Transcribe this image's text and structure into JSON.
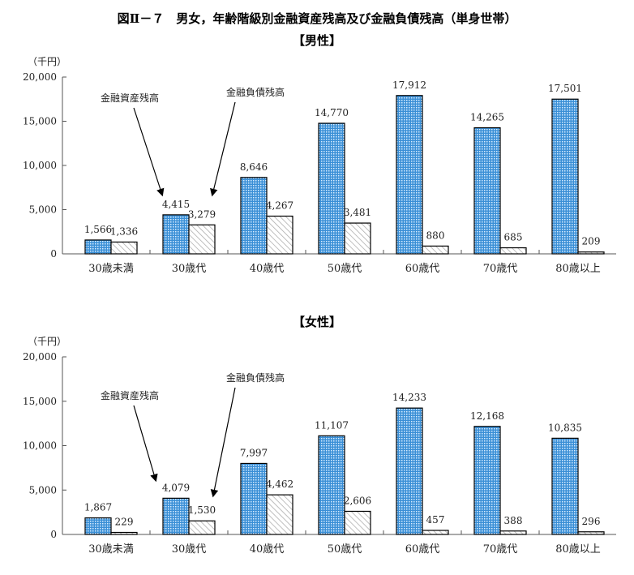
{
  "title": "図Ⅱ－７　男女，年齢階級別金融資産残高及び金融負債残高（単身世帯）",
  "chart_data": [
    {
      "type": "bar",
      "title": "【男性】",
      "ylabel": "（千円）",
      "ylim": [
        0,
        20000
      ],
      "yticks": [
        "0",
        "5,000",
        "10,000",
        "15,000",
        "20,000"
      ],
      "categories": [
        "30歳未満",
        "30歳代",
        "40歳代",
        "50歳代",
        "60歳代",
        "70歳代",
        "80歳以上"
      ],
      "series": [
        {
          "name": "金融資産残高",
          "values": [
            1566,
            4415,
            8646,
            14770,
            17912,
            14265,
            17501
          ],
          "labels": [
            "1,566",
            "4,415",
            "8,646",
            "14,770",
            "17,912",
            "14,265",
            "17,501"
          ]
        },
        {
          "name": "金融負債残高",
          "values": [
            1336,
            3279,
            4267,
            3481,
            880,
            685,
            209
          ],
          "labels": [
            "1,336",
            "3,279",
            "4,267",
            "3,481",
            "880",
            "685",
            "209"
          ]
        }
      ]
    },
    {
      "type": "bar",
      "title": "【女性】",
      "ylabel": "（千円）",
      "ylim": [
        0,
        20000
      ],
      "yticks": [
        "0",
        "5,000",
        "10,000",
        "15,000",
        "20,000"
      ],
      "categories": [
        "30歳未満",
        "30歳代",
        "40歳代",
        "50歳代",
        "60歳代",
        "70歳代",
        "80歳以上"
      ],
      "series": [
        {
          "name": "金融資産残高",
          "values": [
            1867,
            4079,
            7997,
            11107,
            14233,
            12168,
            10835
          ],
          "labels": [
            "1,867",
            "4,079",
            "7,997",
            "11,107",
            "14,233",
            "12,168",
            "10,835"
          ]
        },
        {
          "name": "金融負債残高",
          "values": [
            229,
            1530,
            4462,
            2606,
            457,
            388,
            296
          ],
          "labels": [
            "229",
            "1,530",
            "4,462",
            "2,606",
            "457",
            "388",
            "296"
          ]
        }
      ]
    }
  ],
  "colors": {
    "asset": "#3a8fd6",
    "debt": "#bbbbbb"
  }
}
